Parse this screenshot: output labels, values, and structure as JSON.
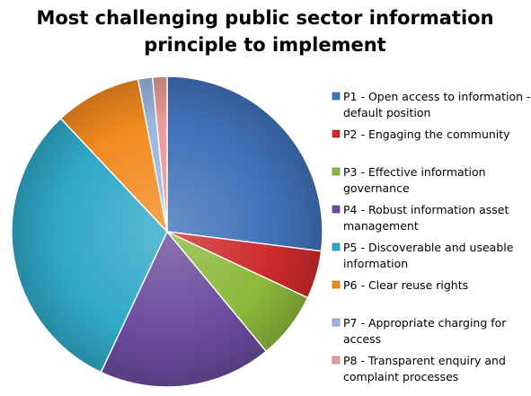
{
  "chart_data": {
    "type": "pie",
    "title": "Most challenging public sector information principle to implement",
    "title_lines": [
      "Most challenging public sector information",
      "principle to implement"
    ],
    "start_angle_degrees": 0,
    "direction": "clockwise",
    "legend_position": "right",
    "slices": [
      {
        "label": "P1 - Open access to information - default position",
        "label_lines": [
          "P1 - Open access to information -",
          "default position"
        ],
        "value": 27,
        "color": "#3F71B8"
      },
      {
        "label": "P2 - Engaging the community",
        "label_lines": [
          "P2 - Engaging the community"
        ],
        "value": 5,
        "color": "#CC2B2B"
      },
      {
        "label": "P3 - Effective information governance",
        "label_lines": [
          "P3 - Effective information",
          "governance"
        ],
        "value": 7,
        "color": "#8CB83A"
      },
      {
        "label": "P4 - Robust information asset management",
        "label_lines": [
          "P4 - Robust information asset",
          "management"
        ],
        "value": 18,
        "color": "#6A4A9C"
      },
      {
        "label": "P5 - Discoverable and useable information",
        "label_lines": [
          "P5 - Discoverable and useable",
          "information"
        ],
        "value": 31,
        "color": "#2FA8C7"
      },
      {
        "label": "P6 - Clear reuse rights",
        "label_lines": [
          "P6 - Clear reuse rights"
        ],
        "value": 9,
        "color": "#F28A1F"
      },
      {
        "label": "P7 - Appropriate charging for access",
        "label_lines": [
          "P7 - Appropriate charging for",
          "access"
        ],
        "value": 1.5,
        "color": "#9AB6DE"
      },
      {
        "label": "P8 - Transparent enquiry and complaint processes",
        "label_lines": [
          "P8 - Transparent enquiry and",
          "complaint processes"
        ],
        "value": 1.5,
        "color": "#E89A9A"
      }
    ]
  }
}
